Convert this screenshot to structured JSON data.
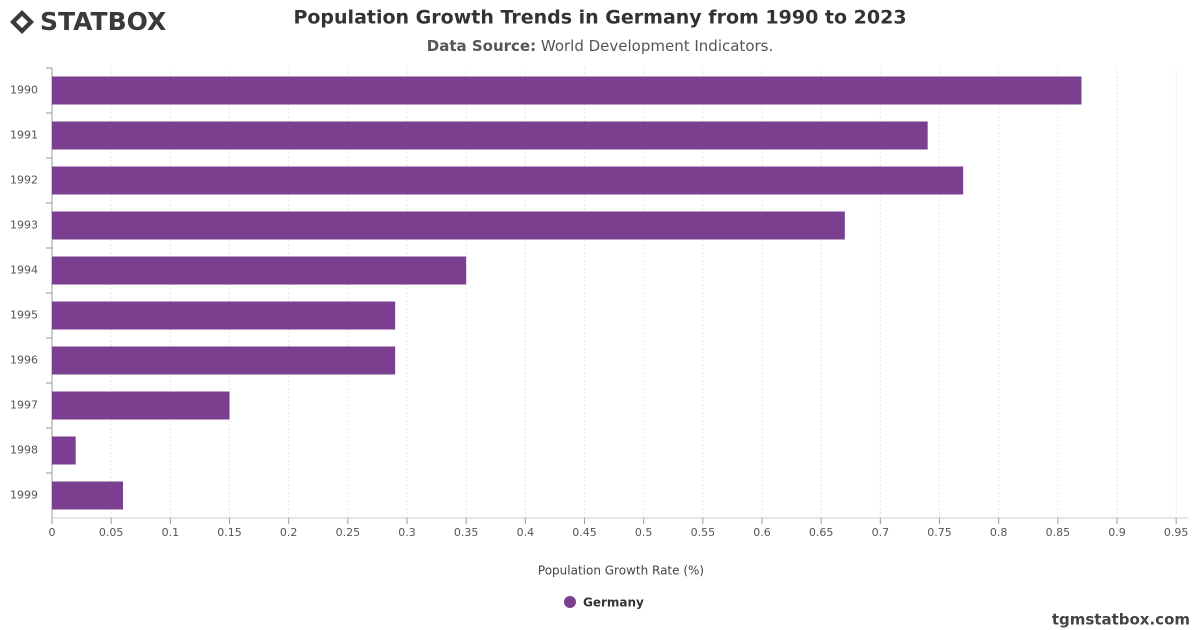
{
  "brand": "STATBOX",
  "footer": "tgmstatbox.com",
  "chart_data": {
    "type": "hbar",
    "title": "Population Growth Trends in Germany from 1990 to 2023",
    "subtitle_label": "Data Source:",
    "subtitle": "World Development Indicators.",
    "x_label": "Population Growth Rate (%)",
    "categories": [
      "1990",
      "1991",
      "1992",
      "1993",
      "1994",
      "1995",
      "1996",
      "1997",
      "1998",
      "1999"
    ],
    "series": [
      {
        "name": "Germany",
        "color": "#7b3f8f",
        "values": [
          0.87,
          0.74,
          0.77,
          0.67,
          0.35,
          0.29,
          0.29,
          0.15,
          0.02,
          0.06
        ]
      }
    ],
    "xlim": [
      0,
      0.96
    ],
    "xticks": [
      0,
      0.05,
      0.1,
      0.15,
      0.2,
      0.25,
      0.3,
      0.35,
      0.4,
      0.45,
      0.5,
      0.55,
      0.6,
      0.65,
      0.7,
      0.75,
      0.8,
      0.85,
      0.9,
      0.95
    ],
    "grid": true,
    "legend": "bottom"
  }
}
